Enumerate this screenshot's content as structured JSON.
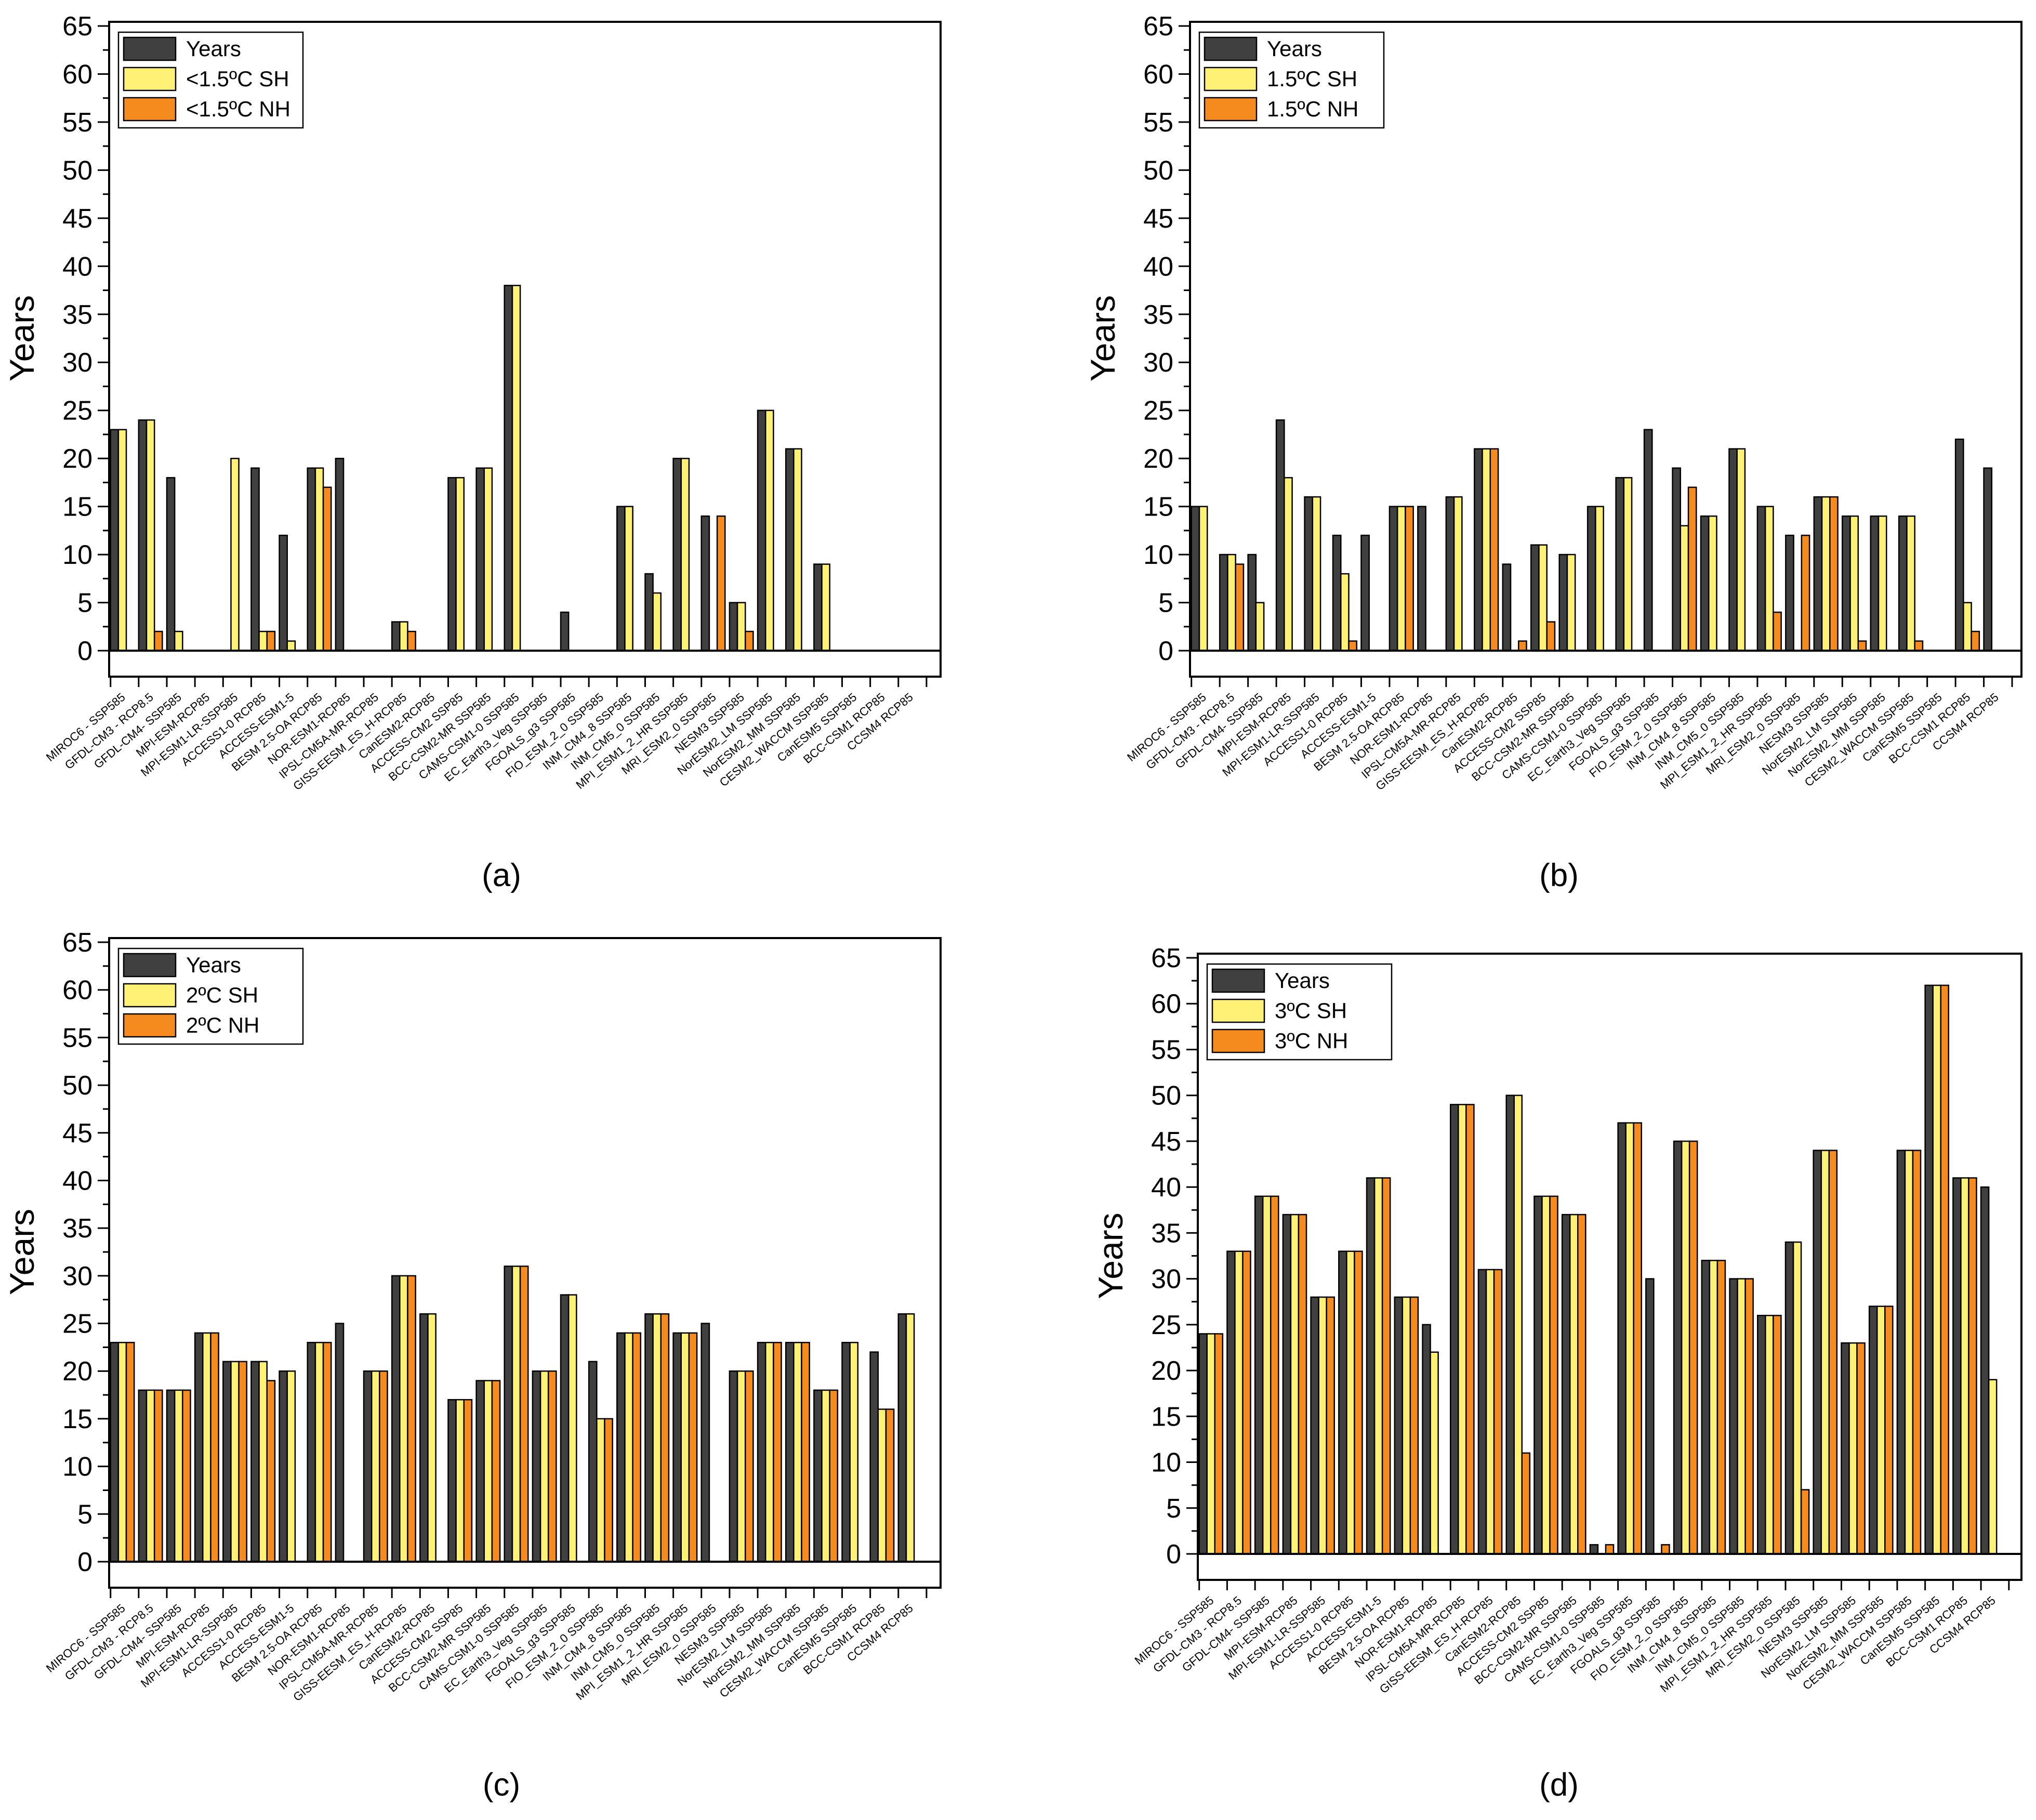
{
  "captions": [
    "(a)",
    "(b)",
    "(c)",
    "(d)"
  ],
  "chart_data": [
    {
      "panel": "a",
      "type": "bar",
      "ylabel": "Years",
      "ylim": [
        0,
        65
      ],
      "yticks": [
        "0",
        "5",
        "10",
        "15",
        "20",
        "25",
        "30",
        "35",
        "40",
        "45",
        "50",
        "55",
        "60",
        "65"
      ],
      "legend": [
        "Years",
        "<1.5ºC SH",
        "<1.5ºC NH"
      ],
      "categories": [
        "MIROC6 - SSP585",
        "GFDL-CM3 - RCP8.5",
        "GFDL-CM4- SSP585",
        "MPI-ESM-RCP85",
        "MPI-ESM1-LR-SSP585",
        "ACCESS1-0 RCP85",
        "ACCESS-ESM1-5",
        "BESM 2.5-OA RCP85",
        "NOR-ESM1-RCP85",
        "IPSL-CM5A-MR-RCP85",
        "GISS-EESM_ES_H-RCP85",
        "CanESM2-RCP85",
        "ACCESS-CM2 SSP85",
        "BCC-CSM2-MR SSP585",
        "CAMS-CSM1-0 SSP585",
        "EC_Earth3_Veg SSP585",
        "FGOALS_g3 SSP585",
        "FIO_ESM_2_0 SSP585",
        "INM_CM4_8 SSP585",
        "INM_CM5_0 SSP585",
        "MPI_ESM1_2_HR SSP585",
        "MRI_ESM2_0 SSP585",
        "NESM3 SSP585",
        "NorESM2_LM SSP585",
        "NorESM2_MM SSP585",
        "CESM2_WACCM SSP585",
        "CanESM5 SSP585",
        "BCC-CSM1 RCP85",
        "CCSM4 RCP85"
      ],
      "series": [
        {
          "name": "Years",
          "color": "#404040",
          "values": [
            23,
            24,
            18,
            0,
            0,
            19,
            12,
            19,
            20,
            0,
            3,
            0,
            18,
            19,
            38,
            0,
            4,
            0,
            15,
            8,
            20,
            14,
            5,
            25,
            21,
            9,
            0,
            0,
            0
          ]
        },
        {
          "name": "<1.5ºC SH",
          "color": "#FFF176",
          "values": [
            23,
            24,
            2,
            0,
            20,
            2,
            1,
            19,
            0,
            0,
            3,
            0,
            18,
            19,
            38,
            0,
            0,
            0,
            15,
            6,
            20,
            0,
            5,
            25,
            21,
            9,
            0,
            0,
            0
          ]
        },
        {
          "name": "<1.5ºC NH",
          "color": "#F58A1F",
          "values": [
            0,
            2,
            0,
            0,
            0,
            2,
            0,
            17,
            0,
            0,
            2,
            0,
            0,
            0,
            0,
            0,
            0,
            0,
            0,
            0,
            0,
            14,
            2,
            0,
            0,
            0,
            0,
            0,
            0
          ]
        }
      ]
    },
    {
      "panel": "b",
      "type": "bar",
      "ylabel": "Years",
      "ylim": [
        0,
        65
      ],
      "yticks": [
        "0",
        "5",
        "10",
        "15",
        "20",
        "25",
        "30",
        "35",
        "40",
        "45",
        "50",
        "55",
        "60",
        "65"
      ],
      "legend": [
        "Years",
        "1.5ºC SH",
        "1.5ºC NH"
      ],
      "categories": [
        "MIROC6 - SSP585",
        "GFDL-CM3 - RCP8.5",
        "GFDL-CM4- SSP585",
        "MPI-ESM-RCP85",
        "MPI-ESM1-LR-SSP585",
        "ACCESS1-0 RCP85",
        "ACCESS-ESM1-5",
        "BESM 2.5-OA RCP85",
        "NOR-ESM1-RCP85",
        "IPSL-CM5A-MR-RCP85",
        "GISS-EESM_ES_H-RCP85",
        "CanESM2-RCP85",
        "ACCESS-CM2 SSP85",
        "BCC-CSM2-MR SSP585",
        "CAMS-CSM1-0 SSP585",
        "EC_Earth3_Veg SSP585",
        "FGOALS_g3 SSP585",
        "FIO_ESM_2_0 SSP585",
        "INM_CM4_8 SSP585",
        "INM_CM5_0 SSP585",
        "MPI_ESM1_2_HR SSP585",
        "MRI_ESM2_0 SSP585",
        "NESM3 SSP585",
        "NorESM2_LM SSP585",
        "NorESM2_MM SSP585",
        "CESM2_WACCM SSP585",
        "CanESM5 SSP585",
        "BCC-CSM1 RCP85",
        "CCSM4 RCP85"
      ],
      "series": [
        {
          "name": "Years",
          "color": "#404040",
          "values": [
            15,
            10,
            10,
            24,
            16,
            12,
            12,
            15,
            15,
            16,
            21,
            9,
            11,
            10,
            15,
            18,
            23,
            19,
            14,
            21,
            15,
            12,
            16,
            14,
            14,
            14,
            0,
            22,
            19
          ]
        },
        {
          "name": "1.5ºC SH",
          "color": "#FFF176",
          "values": [
            15,
            10,
            5,
            18,
            16,
            8,
            0,
            15,
            0,
            16,
            21,
            0,
            11,
            10,
            15,
            18,
            0,
            13,
            14,
            21,
            15,
            0,
            16,
            14,
            14,
            14,
            0,
            5,
            0
          ]
        },
        {
          "name": "1.5ºC NH",
          "color": "#F58A1F",
          "values": [
            0,
            9,
            0,
            0,
            0,
            1,
            0,
            15,
            0,
            0,
            21,
            1,
            3,
            0,
            0,
            0,
            0,
            17,
            0,
            0,
            4,
            12,
            16,
            1,
            0,
            1,
            0,
            2,
            0
          ]
        }
      ]
    },
    {
      "panel": "c",
      "type": "bar",
      "ylabel": "Years",
      "ylim": [
        0,
        65
      ],
      "yticks": [
        "0",
        "5",
        "10",
        "15",
        "20",
        "25",
        "30",
        "35",
        "40",
        "45",
        "50",
        "55",
        "60",
        "65"
      ],
      "legend": [
        "Years",
        "2ºC SH",
        "2ºC NH"
      ],
      "categories": [
        "MIROC6 - SSP585",
        "GFDL-CM3 - RCP8.5",
        "GFDL-CM4- SSP585",
        "MPI-ESM-RCP85",
        "MPI-ESM1-LR-SSP585",
        "ACCESS1-0 RCP85",
        "ACCESS-ESM1-5",
        "BESM 2.5-OA RCP85",
        "NOR-ESM1-RCP85",
        "IPSL-CM5A-MR-RCP85",
        "GISS-EESM_ES_H-RCP85",
        "CanESM2-RCP85",
        "ACCESS-CM2 SSP85",
        "BCC-CSM2-MR SSP585",
        "CAMS-CSM1-0 SSP585",
        "EC_Earth3_Veg SSP585",
        "FGOALS_g3 SSP585",
        "FIO_ESM_2_0 SSP585",
        "INM_CM4_8 SSP585",
        "INM_CM5_0 SSP585",
        "MPI_ESM1_2_HR SSP585",
        "MRI_ESM2_0 SSP585",
        "NESM3 SSP585",
        "NorESM2_LM SSP585",
        "NorESM2_MM SSP585",
        "CESM2_WACCM SSP585",
        "CanESM5 SSP585",
        "BCC-CSM1 RCP85",
        "CCSM4 RCP85"
      ],
      "series": [
        {
          "name": "Years",
          "color": "#404040",
          "values": [
            23,
            18,
            18,
            24,
            21,
            21,
            20,
            23,
            25,
            20,
            30,
            26,
            17,
            19,
            31,
            20,
            28,
            21,
            24,
            26,
            24,
            25,
            20,
            23,
            23,
            18,
            23,
            22,
            26
          ]
        },
        {
          "name": "2ºC SH",
          "color": "#FFF176",
          "values": [
            23,
            18,
            18,
            24,
            21,
            21,
            20,
            23,
            0,
            20,
            30,
            26,
            17,
            19,
            31,
            20,
            28,
            15,
            24,
            26,
            24,
            0,
            20,
            23,
            23,
            18,
            23,
            16,
            26
          ]
        },
        {
          "name": "2ºC NH",
          "color": "#F58A1F",
          "values": [
            23,
            18,
            18,
            24,
            21,
            19,
            0,
            23,
            0,
            20,
            30,
            0,
            17,
            19,
            31,
            20,
            0,
            15,
            24,
            26,
            24,
            0,
            20,
            23,
            23,
            18,
            0,
            16,
            0
          ]
        }
      ]
    },
    {
      "panel": "d",
      "type": "bar",
      "ylabel": "Years",
      "ylim": [
        0,
        65
      ],
      "yticks": [
        "0",
        "5",
        "10",
        "15",
        "20",
        "25",
        "30",
        "35",
        "40",
        "45",
        "50",
        "55",
        "60",
        "65"
      ],
      "legend": [
        "Years",
        "3ºC SH",
        "3ºC NH"
      ],
      "categories": [
        "MIROC6 - SSP585",
        "GFDL-CM3 - RCP8.5",
        "GFDL-CM4- SSP585",
        "MPI-ESM-RCP85",
        "MPI-ESM1-LR-SSP585",
        "ACCESS1-0 RCP85",
        "ACCESS-ESM1-5",
        "BESM 2.5-OA RCP85",
        "NOR-ESM1-RCP85",
        "IPSL-CM5A-MR-RCP85",
        "GISS-EESM_ES_H-RCP85",
        "CanESM2-RCP85",
        "ACCESS-CM2 SSP85",
        "BCC-CSM2-MR SSP585",
        "CAMS-CSM1-0 SSP585",
        "EC_Earth3_Veg SSP585",
        "FGOALS_g3 SSP585",
        "FIO_ESM_2_0 SSP585",
        "INM_CM4_8 SSP585",
        "INM_CM5_0 SSP585",
        "MPI_ESM1_2_HR SSP585",
        "MRI_ESM2_0 SSP585",
        "NESM3 SSP585",
        "NorESM2_LM SSP585",
        "NorESM2_MM SSP585",
        "CESM2_WACCM SSP585",
        "CanESM5 SSP585",
        "BCC-CSM1 RCP85",
        "CCSM4 RCP85"
      ],
      "series": [
        {
          "name": "Years",
          "color": "#404040",
          "values": [
            24,
            33,
            39,
            37,
            28,
            33,
            41,
            28,
            25,
            49,
            31,
            50,
            39,
            37,
            1,
            47,
            30,
            45,
            32,
            30,
            26,
            34,
            44,
            23,
            27,
            44,
            62,
            41,
            40
          ]
        },
        {
          "name": "3ºC SH",
          "color": "#FFF176",
          "values": [
            24,
            33,
            39,
            37,
            28,
            33,
            41,
            28,
            22,
            49,
            31,
            50,
            39,
            37,
            0,
            47,
            0,
            45,
            32,
            30,
            26,
            34,
            44,
            23,
            27,
            44,
            62,
            41,
            19
          ]
        },
        {
          "name": "3ºC NH",
          "color": "#F58A1F",
          "values": [
            24,
            33,
            39,
            37,
            28,
            33,
            41,
            28,
            0,
            49,
            31,
            11,
            39,
            37,
            1,
            47,
            1,
            45,
            32,
            30,
            26,
            7,
            44,
            23,
            27,
            44,
            62,
            41,
            0
          ]
        }
      ]
    }
  ]
}
